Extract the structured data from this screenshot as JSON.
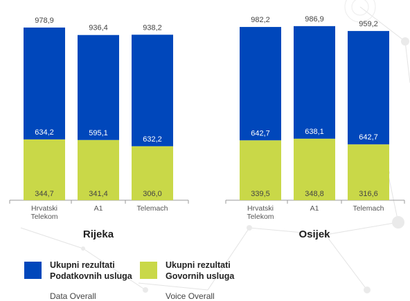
{
  "chart_data": {
    "type": "bar",
    "stacked": true,
    "groups": [
      {
        "title": "Rijeka",
        "categories": [
          [
            "Hrvatski",
            "Telekom"
          ],
          [
            "A1"
          ],
          [
            "Telemach"
          ]
        ],
        "data_values": [
          634.2,
          595.1,
          632.2
        ],
        "voice_values": [
          344.7,
          341.4,
          306.0
        ],
        "totals": [
          978.9,
          936.4,
          938.2
        ],
        "data_labels": [
          "634,2",
          "595,1",
          "632,2"
        ],
        "voice_labels": [
          "344,7",
          "341,4",
          "306,0"
        ],
        "total_labels": [
          "978,9",
          "936,4",
          "938,2"
        ]
      },
      {
        "title": "Osijek",
        "categories": [
          [
            "Hrvatski",
            "Telekom"
          ],
          [
            "A1"
          ],
          [
            "Telemach"
          ]
        ],
        "data_values": [
          642.7,
          638.1,
          642.7
        ],
        "voice_values": [
          339.5,
          348.8,
          316.6
        ],
        "totals": [
          982.2,
          986.9,
          959.2
        ],
        "data_labels": [
          "642,7",
          "638,1",
          "642,7"
        ],
        "voice_labels": [
          "339,5",
          "348,8",
          "316,6"
        ],
        "total_labels": [
          "982,2",
          "986,9",
          "959,2"
        ]
      }
    ],
    "series": [
      {
        "name": "Ukupni rezultati Podatkovnih usluga",
        "color": "#0047BB"
      },
      {
        "name": "Ukupni rezultati Govornih usluga",
        "color": "#C9D848"
      }
    ],
    "ylim": [
      0,
      1000
    ],
    "grid": false,
    "legend_position": "bottom"
  },
  "legend": [
    {
      "title_line1": "Ukupni rezultati",
      "title_line2": "Podatkovnih usluga",
      "subtitle": "Data Overall",
      "color": "#0047BB"
    },
    {
      "title_line1": "Ukupni rezultati",
      "title_line2": "Govornih usluga",
      "subtitle": "Voice Overall",
      "color": "#C9D848"
    }
  ]
}
